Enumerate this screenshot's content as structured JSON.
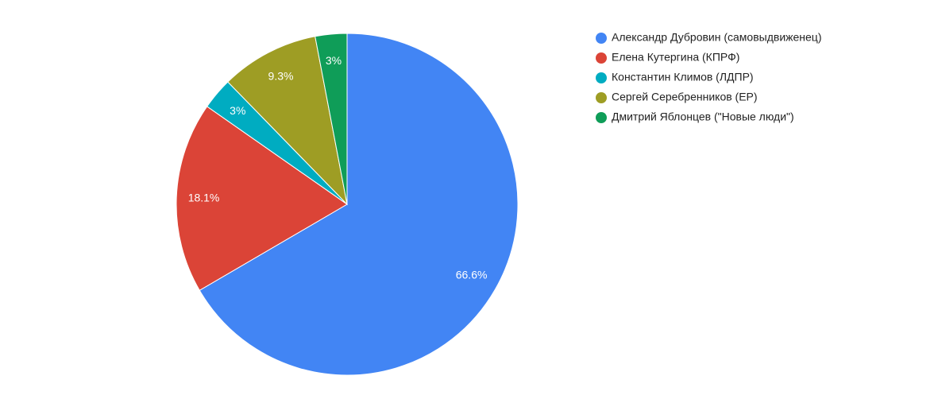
{
  "chart_data": {
    "type": "pie",
    "categories": [
      "Александр Дубровин (самовыдвиженец)",
      "Елена Кутергина (КПРФ)",
      "Константин Климов (ЛДПР)",
      "Сергей Серебренников (ЕР)",
      "Дмитрий Яблонцев (\"Новые люди\")"
    ],
    "values": [
      66.6,
      18.1,
      3,
      9.3,
      3
    ],
    "value_labels": [
      "66.6%",
      "18.1%",
      "3%",
      "9.3%",
      "3%"
    ],
    "colors": [
      "#4285f4",
      "#db4437",
      "#00acc1",
      "#9e9d24",
      "#0f9d58"
    ],
    "legend": "right"
  }
}
